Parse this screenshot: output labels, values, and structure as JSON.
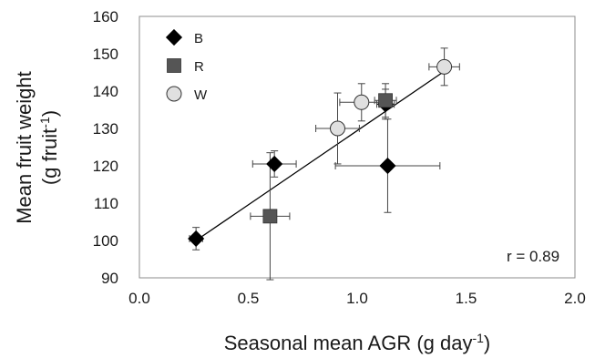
{
  "chart_data": {
    "type": "scatter",
    "xlabel": "Seasonal mean AGR (g day",
    "xlabel_sup": "-1",
    "xlabel_end": ")",
    "ylabel": "Mean fruit weight",
    "ylabel_line2": "(g fruit",
    "ylabel_line2_sup": "-1",
    "ylabel_line2_end": ")",
    "xlim": [
      0.0,
      2.0
    ],
    "ylim": [
      90,
      160
    ],
    "x_ticks": [
      "0.0",
      "0.5",
      "1.0",
      "1.5",
      "2.0"
    ],
    "y_ticks": [
      "90",
      "100",
      "110",
      "120",
      "130",
      "140",
      "150",
      "160"
    ],
    "grid": false,
    "legend_position": "top-left",
    "annotation": "r = 0.89",
    "trendline": {
      "x": [
        0.26,
        1.4
      ],
      "y": [
        100.0,
        145.3
      ]
    },
    "series": [
      {
        "name": "B",
        "marker": "diamond",
        "color": "#000000",
        "points": [
          {
            "x": 0.26,
            "y": 100.5,
            "xerr": 0.03,
            "yerr": 3.0
          },
          {
            "x": 0.62,
            "y": 120.5,
            "xerr": 0.1,
            "yerr": 3.5
          },
          {
            "x": 1.14,
            "y": 120.0,
            "xerr": 0.24,
            "yerr": 12.5
          },
          {
            "x": 1.13,
            "y": 136.5,
            "xerr": 0.04,
            "yerr": 4.0
          }
        ]
      },
      {
        "name": "R",
        "marker": "square",
        "color": "#555555",
        "points": [
          {
            "x": 0.6,
            "y": 106.5,
            "xerr": 0.09,
            "yerr": 17.0
          },
          {
            "x": 1.13,
            "y": 137.5,
            "xerr": 0.05,
            "yerr": 4.5
          }
        ]
      },
      {
        "name": "W",
        "marker": "circle",
        "color": "#e0e0e0",
        "points": [
          {
            "x": 0.91,
            "y": 130.0,
            "xerr": 0.1,
            "yerr": 9.5
          },
          {
            "x": 1.02,
            "y": 137.0,
            "xerr": 0.1,
            "yerr": 5.0
          },
          {
            "x": 1.4,
            "y": 146.5,
            "xerr": 0.07,
            "yerr": 5.0
          }
        ]
      }
    ]
  }
}
